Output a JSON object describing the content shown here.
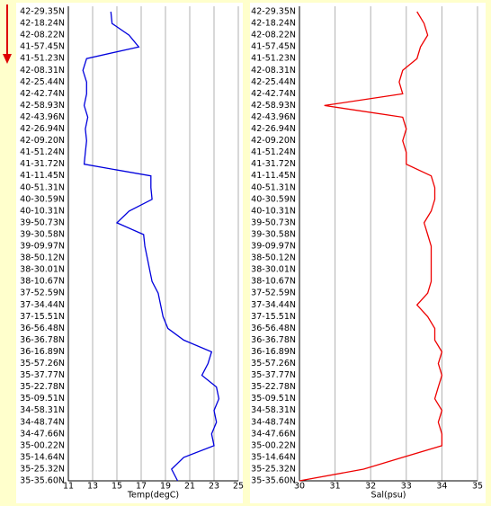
{
  "chart_data": [
    {
      "type": "line",
      "xlabel": "Temp(degC)",
      "color": "#0000dd",
      "categories": [
        "42-29.35N",
        "42-18.24N",
        "42-08.22N",
        "41-57.45N",
        "41-51.23N",
        "42-08.31N",
        "42-25.44N",
        "42-42.74N",
        "42-58.93N",
        "42-43.96N",
        "42-26.94N",
        "42-09.20N",
        "41-51.24N",
        "41-31.72N",
        "41-11.45N",
        "40-51.31N",
        "40-30.59N",
        "40-10.31N",
        "39-50.73N",
        "39-30.58N",
        "39-09.97N",
        "38-50.12N",
        "38-30.01N",
        "38-10.67N",
        "37-52.59N",
        "37-34.44N",
        "37-15.51N",
        "36-56.48N",
        "36-36.78N",
        "36-16.89N",
        "35-57.26N",
        "35-37.77N",
        "35-22.78N",
        "35-09.51N",
        "34-58.31N",
        "34-48.74N",
        "34-47.66N",
        "35-00.22N",
        "35-14.64N",
        "35-25.32N",
        "35-35.60N"
      ],
      "values": [
        14.5,
        14.6,
        16.0,
        16.8,
        12.5,
        12.2,
        12.5,
        12.5,
        12.3,
        12.6,
        12.4,
        12.5,
        12.4,
        12.3,
        17.8,
        17.8,
        17.9,
        16.0,
        15.0,
        17.2,
        17.3,
        17.5,
        17.7,
        17.9,
        18.4,
        18.6,
        18.8,
        19.2,
        20.5,
        22.8,
        22.5,
        22.0,
        23.2,
        23.4,
        23.0,
        23.2,
        22.8,
        23.0,
        20.5,
        19.5,
        20.0
      ],
      "xlim": [
        11,
        25
      ],
      "xticks": [
        11,
        13,
        15,
        17,
        19,
        21,
        23,
        25
      ],
      "grid": true
    },
    {
      "type": "line",
      "xlabel": "Sal(psu)",
      "color": "#ee0000",
      "categories": [
        "42-29.35N",
        "42-18.24N",
        "42-08.22N",
        "41-57.45N",
        "41-51.23N",
        "42-08.31N",
        "42-25.44N",
        "42-42.74N",
        "42-58.93N",
        "42-43.96N",
        "42-26.94N",
        "42-09.20N",
        "41-51.24N",
        "41-31.72N",
        "41-11.45N",
        "40-51.31N",
        "40-30.59N",
        "40-10.31N",
        "39-50.73N",
        "39-30.58N",
        "39-09.97N",
        "38-50.12N",
        "38-30.01N",
        "38-10.67N",
        "37-52.59N",
        "37-34.44N",
        "37-15.51N",
        "36-56.48N",
        "36-36.78N",
        "36-16.89N",
        "35-57.26N",
        "35-37.77N",
        "35-22.78N",
        "35-09.51N",
        "34-58.31N",
        "34-48.74N",
        "34-47.66N",
        "35-00.22N",
        "35-14.64N",
        "35-25.32N",
        "35-35.60N"
      ],
      "values": [
        33.3,
        33.5,
        33.6,
        33.4,
        33.3,
        32.9,
        32.8,
        32.9,
        30.7,
        32.9,
        33.0,
        32.9,
        33.0,
        33.0,
        33.7,
        33.8,
        33.8,
        33.7,
        33.5,
        33.6,
        33.7,
        33.7,
        33.7,
        33.7,
        33.6,
        33.3,
        33.6,
        33.8,
        33.8,
        34.0,
        33.9,
        34.0,
        33.9,
        33.8,
        34.0,
        33.9,
        34.0,
        34.0,
        32.9,
        31.8,
        30.0
      ],
      "xlim": [
        30,
        35
      ],
      "xticks": [
        30,
        31,
        32,
        33,
        34,
        35
      ],
      "grid": true
    }
  ]
}
